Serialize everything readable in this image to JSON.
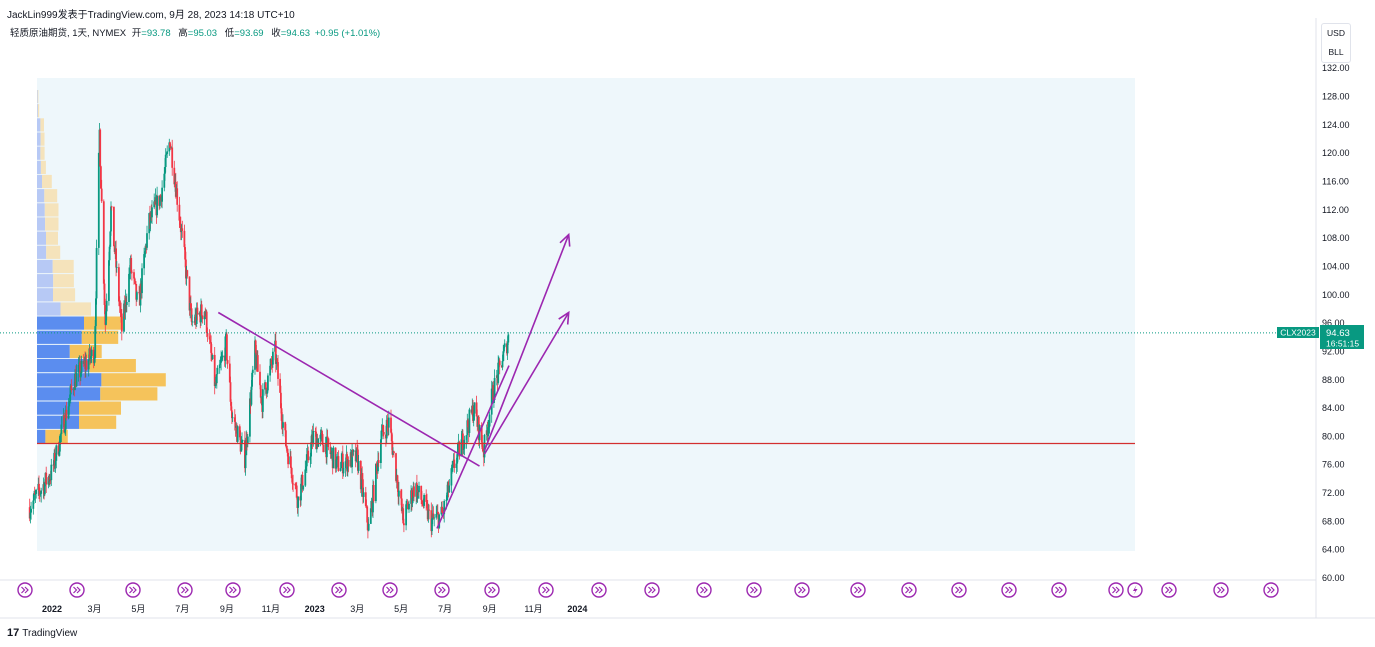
{
  "header": {
    "publish_line": "JackLin999发表于TradingView.com, 9月 28, 2023 14:18 UTC+10"
  },
  "legend": {
    "symbol": "轻质原油期货, 1天, NYMEX",
    "open_label": "开",
    "open": "=93.78",
    "high_label": "高",
    "high": "=95.03",
    "low_label": "低",
    "low": "=93.69",
    "close_label": "收",
    "close": "=94.63",
    "change": "+0.95 (+1.01%)"
  },
  "currency": {
    "code": "USD",
    "unit": "BLL"
  },
  "price_label": {
    "symbol": "CLX2023",
    "price": "94.63",
    "countdown": "16:51:15"
  },
  "footer": {
    "logo_mark": "17",
    "logo_text": "TradingView"
  },
  "colors": {
    "up": "#089981",
    "down": "#f23645",
    "trendline": "#9c27b0",
    "poc_line": "#d32f2f",
    "vp_blue": "#5b8def",
    "vp_blue_light": "#b7c9f5",
    "vp_orange": "#f5c35b",
    "vp_orange_light": "#f5e3bb",
    "range_bg": "#eef7fb"
  },
  "chart_data": {
    "type": "candlestick",
    "symbol": "CLX2023",
    "title": "轻质原油期货, 1天, NYMEX",
    "ylim": [
      60,
      132
    ],
    "y_ticks": [
      "60.00",
      "64.00",
      "68.00",
      "72.00",
      "76.00",
      "80.00",
      "84.00",
      "88.00",
      "92.00",
      "96.00",
      "100.00",
      "104.00",
      "108.00",
      "112.00",
      "116.00",
      "120.00",
      "124.00",
      "128.00",
      "132.00"
    ],
    "x_ticks": [
      "2022",
      "3月",
      "5月",
      "7月",
      "9月",
      "11月",
      "2023",
      "3月",
      "5月",
      "7月",
      "9月",
      "11月",
      "2024"
    ],
    "last_price": 94.63,
    "horizontal_line": 79,
    "price_path": [
      [
        "2021-12-01",
        70
      ],
      [
        "2022-01-01",
        75
      ],
      [
        "2022-02-01",
        88
      ],
      [
        "2022-03-01",
        92
      ],
      [
        "2022-03-08",
        123
      ],
      [
        "2022-03-16",
        96
      ],
      [
        "2022-03-24",
        112
      ],
      [
        "2022-04-08",
        95
      ],
      [
        "2022-04-20",
        104
      ],
      [
        "2022-05-01",
        98
      ],
      [
        "2022-05-15",
        110
      ],
      [
        "2022-06-01",
        114
      ],
      [
        "2022-06-14",
        122
      ],
      [
        "2022-07-01",
        108
      ],
      [
        "2022-07-14",
        96
      ],
      [
        "2022-08-01",
        98
      ],
      [
        "2022-08-16",
        87
      ],
      [
        "2022-08-31",
        93
      ],
      [
        "2022-09-08",
        83
      ],
      [
        "2022-09-26",
        77
      ],
      [
        "2022-10-10",
        92
      ],
      [
        "2022-10-20",
        85
      ],
      [
        "2022-11-07",
        92
      ],
      [
        "2022-11-20",
        80
      ],
      [
        "2022-12-09",
        71
      ],
      [
        "2022-12-30",
        80
      ],
      [
        "2023-01-15",
        79
      ],
      [
        "2023-02-01",
        76
      ],
      [
        "2023-03-01",
        77
      ],
      [
        "2023-03-17",
        67
      ],
      [
        "2023-04-03",
        80
      ],
      [
        "2023-04-14",
        82
      ],
      [
        "2023-05-04",
        68
      ],
      [
        "2023-05-20",
        73
      ],
      [
        "2023-06-12",
        68
      ],
      [
        "2023-06-28",
        69
      ],
      [
        "2023-07-14",
        76
      ],
      [
        "2023-08-10",
        84
      ],
      [
        "2023-08-24",
        78
      ],
      [
        "2023-09-05",
        86
      ],
      [
        "2023-09-19",
        91
      ],
      [
        "2023-09-27",
        94
      ]
    ],
    "trendlines": [
      {
        "from": [
          "2022-08-20",
          97.5
        ],
        "to": [
          "2023-08-18",
          75.8
        ]
      },
      {
        "from": [
          "2023-06-20",
          67
        ],
        "to": [
          "2023-09-28",
          90
        ]
      },
      {
        "from": [
          "2023-08-25",
          78
        ],
        "to": [
          "2023-12-20",
          108.5
        ],
        "arrow": true
      },
      {
        "from": [
          "2023-08-25",
          77.5
        ],
        "to": [
          "2023-12-20",
          97.5
        ],
        "arrow": true
      }
    ],
    "volume_profile": [
      {
        "price": 128,
        "up": 0.02,
        "down": 0.03
      },
      {
        "price": 126,
        "up": 0.03,
        "down": 0.05
      },
      {
        "price": 124,
        "up": 0.12,
        "down": 0.13
      },
      {
        "price": 122,
        "up": 0.13,
        "down": 0.14
      },
      {
        "price": 120,
        "up": 0.12,
        "down": 0.15
      },
      {
        "price": 118,
        "up": 0.14,
        "down": 0.18
      },
      {
        "price": 116,
        "up": 0.18,
        "down": 0.35
      },
      {
        "price": 114,
        "up": 0.26,
        "down": 0.46
      },
      {
        "price": 112,
        "up": 0.28,
        "down": 0.49
      },
      {
        "price": 110,
        "up": 0.29,
        "down": 0.48
      },
      {
        "price": 108,
        "up": 0.32,
        "down": 0.43
      },
      {
        "price": 106,
        "up": 0.33,
        "down": 0.5
      },
      {
        "price": 104,
        "up": 0.56,
        "down": 0.75
      },
      {
        "price": 102,
        "up": 0.58,
        "down": 0.74
      },
      {
        "price": 100,
        "up": 0.57,
        "down": 0.79
      },
      {
        "price": 98,
        "up": 0.84,
        "down": 1.09
      },
      {
        "price": 96,
        "up": 1.68,
        "down": 1.4
      },
      {
        "price": 94,
        "up": 1.6,
        "down": 1.3
      },
      {
        "price": 92,
        "up": 1.17,
        "down": 1.14
      },
      {
        "price": 90,
        "up": 1.87,
        "down": 1.66
      },
      {
        "price": 88,
        "up": 2.3,
        "down": 2.3
      },
      {
        "price": 86,
        "up": 2.26,
        "down": 2.04
      },
      {
        "price": 84,
        "up": 1.5,
        "down": 1.5
      },
      {
        "price": 82,
        "up": 1.5,
        "down": 1.33
      },
      {
        "price": 80,
        "up": 0.3,
        "down": 0.8
      }
    ]
  }
}
